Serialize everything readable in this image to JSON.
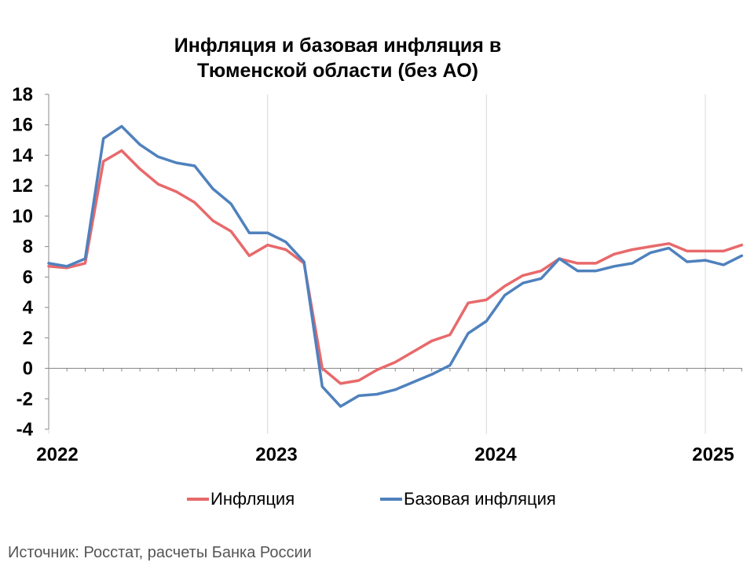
{
  "chart_data": {
    "type": "line",
    "title_line1": "Инфляция и базовая инфляция в",
    "title_line2": "Тюменской области (без АО)",
    "xlabel": "",
    "ylabel": "",
    "ylim": [
      -4,
      18
    ],
    "y_ticks": [
      "18",
      "16",
      "14",
      "12",
      "10",
      "8",
      "6",
      "4",
      "2",
      "0",
      "-2",
      "-4"
    ],
    "x_ticks": [
      "2022",
      "2023",
      "2024",
      "2025"
    ],
    "grid": "vertical lines at year boundaries",
    "legend_position": "bottom",
    "x_months_start": "2022-01",
    "series": [
      {
        "name": "Инфляция",
        "color": "#e8696b",
        "values": [
          6.7,
          6.6,
          6.9,
          13.6,
          14.3,
          13.1,
          12.1,
          11.6,
          10.9,
          9.7,
          9.0,
          7.4,
          8.1,
          7.8,
          6.9,
          0.0,
          -1.0,
          -0.8,
          -0.1,
          0.4,
          1.1,
          1.8,
          2.2,
          4.3,
          4.5,
          5.4,
          6.1,
          6.4,
          7.2,
          6.9,
          6.9,
          7.5,
          7.8,
          8.0,
          8.2,
          7.7,
          7.7,
          7.7,
          8.1
        ]
      },
      {
        "name": "Базовая инфляция",
        "color": "#4f81bd",
        "values": [
          6.9,
          6.7,
          7.2,
          15.1,
          15.9,
          14.7,
          13.9,
          13.5,
          13.3,
          11.8,
          10.8,
          8.9,
          8.9,
          8.3,
          7.0,
          -1.2,
          -2.5,
          -1.8,
          -1.7,
          -1.4,
          -0.9,
          -0.4,
          0.2,
          2.3,
          3.1,
          4.8,
          5.6,
          5.9,
          7.2,
          6.4,
          6.4,
          6.7,
          6.9,
          7.6,
          7.9,
          7.0,
          7.1,
          6.8,
          7.4
        ]
      }
    ]
  },
  "source_text": "Источник: Росстат, расчеты Банка России"
}
